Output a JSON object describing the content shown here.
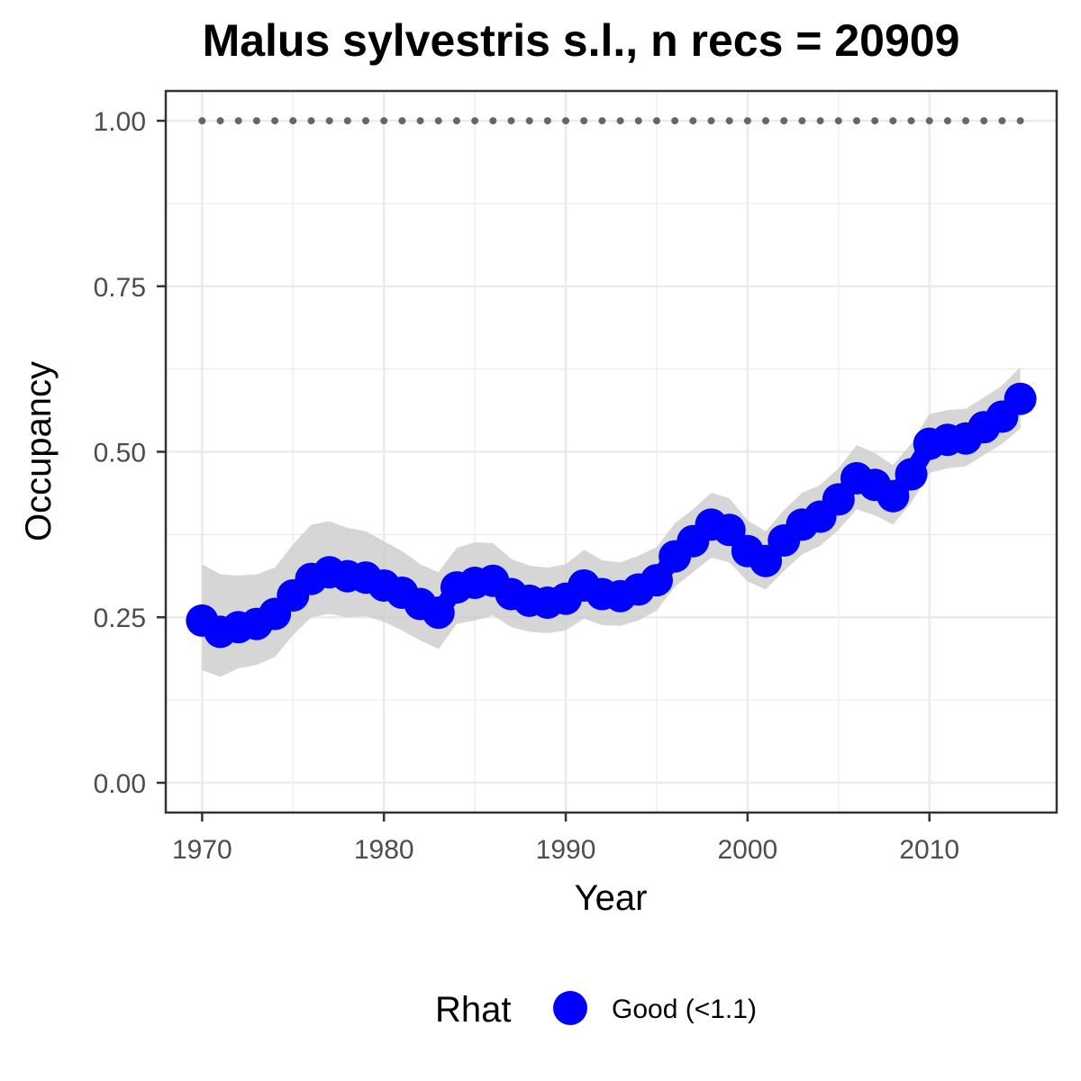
{
  "chart_data": {
    "type": "line",
    "title": "Malus sylvestris s.l., n recs = 20909",
    "xlabel": "Year",
    "ylabel": "Occupancy",
    "xlim": [
      1968,
      2017
    ],
    "ylim": [
      -0.045,
      1.045
    ],
    "x_ticks": [
      1970,
      1980,
      1990,
      2000,
      2010
    ],
    "y_ticks": [
      0.0,
      0.25,
      0.5,
      0.75,
      1.0
    ],
    "y_tick_labels": [
      "0.00",
      "0.25",
      "0.50",
      "0.75",
      "1.00"
    ],
    "grid": true,
    "legend": {
      "position": "bottom",
      "title": "Rhat",
      "entries": [
        {
          "label": "Good (<1.1)",
          "color": "#0000ff"
        }
      ]
    },
    "x": [
      1970,
      1971,
      1972,
      1973,
      1974,
      1975,
      1976,
      1977,
      1978,
      1979,
      1980,
      1981,
      1982,
      1983,
      1984,
      1985,
      1986,
      1987,
      1988,
      1989,
      1990,
      1991,
      1992,
      1993,
      1994,
      1995,
      1996,
      1997,
      1998,
      1999,
      2000,
      2001,
      2002,
      2003,
      2004,
      2005,
      2006,
      2007,
      2008,
      2009,
      2010,
      2011,
      2012,
      2013,
      2014,
      2015
    ],
    "series": [
      {
        "name": "Good (<1.1)",
        "color": "#0000ff",
        "values": [
          0.245,
          0.228,
          0.235,
          0.24,
          0.255,
          0.283,
          0.308,
          0.318,
          0.312,
          0.31,
          0.298,
          0.287,
          0.27,
          0.257,
          0.295,
          0.302,
          0.305,
          0.285,
          0.275,
          0.272,
          0.278,
          0.298,
          0.285,
          0.282,
          0.292,
          0.306,
          0.342,
          0.365,
          0.39,
          0.382,
          0.35,
          0.335,
          0.366,
          0.39,
          0.402,
          0.428,
          0.46,
          0.45,
          0.433,
          0.466,
          0.512,
          0.518,
          0.52,
          0.537,
          0.553,
          0.58
        ],
        "lower": [
          0.17,
          0.16,
          0.173,
          0.178,
          0.19,
          0.223,
          0.25,
          0.255,
          0.25,
          0.252,
          0.243,
          0.23,
          0.215,
          0.202,
          0.24,
          0.245,
          0.253,
          0.235,
          0.228,
          0.226,
          0.23,
          0.248,
          0.238,
          0.237,
          0.245,
          0.26,
          0.296,
          0.318,
          0.34,
          0.333,
          0.304,
          0.292,
          0.32,
          0.345,
          0.358,
          0.382,
          0.413,
          0.404,
          0.39,
          0.423,
          0.468,
          0.475,
          0.478,
          0.495,
          0.512,
          0.535
        ],
        "upper": [
          0.33,
          0.315,
          0.313,
          0.315,
          0.325,
          0.36,
          0.39,
          0.395,
          0.385,
          0.38,
          0.365,
          0.35,
          0.33,
          0.318,
          0.355,
          0.363,
          0.362,
          0.338,
          0.328,
          0.325,
          0.33,
          0.352,
          0.336,
          0.333,
          0.343,
          0.356,
          0.392,
          0.413,
          0.438,
          0.43,
          0.396,
          0.38,
          0.412,
          0.438,
          0.45,
          0.475,
          0.51,
          0.498,
          0.48,
          0.512,
          0.557,
          0.563,
          0.565,
          0.582,
          0.6,
          0.628
        ]
      },
      {
        "name": "",
        "style": "dotted",
        "color": "#666666",
        "values": [
          1,
          1,
          1,
          1,
          1,
          1,
          1,
          1,
          1,
          1,
          1,
          1,
          1,
          1,
          1,
          1,
          1,
          1,
          1,
          1,
          1,
          1,
          1,
          1,
          1,
          1,
          1,
          1,
          1,
          1,
          1,
          1,
          1,
          1,
          1,
          1,
          1,
          1,
          1,
          1,
          1,
          1,
          1,
          1,
          1,
          1
        ]
      }
    ]
  }
}
